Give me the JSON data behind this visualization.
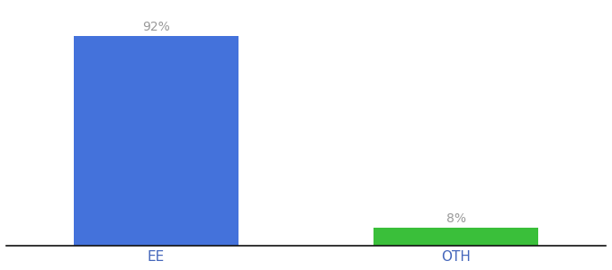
{
  "categories": [
    "EE",
    "OTH"
  ],
  "values": [
    92,
    8
  ],
  "bar_colors": [
    "#4472db",
    "#3abf3a"
  ],
  "bar_labels": [
    "92%",
    "8%"
  ],
  "ylim": [
    0,
    105
  ],
  "background_color": "#ffffff",
  "label_fontsize": 10,
  "tick_fontsize": 11,
  "label_color": "#999999",
  "tick_color": "#4466bb",
  "bar_width": 0.55,
  "xlim": [
    -0.5,
    1.5
  ]
}
